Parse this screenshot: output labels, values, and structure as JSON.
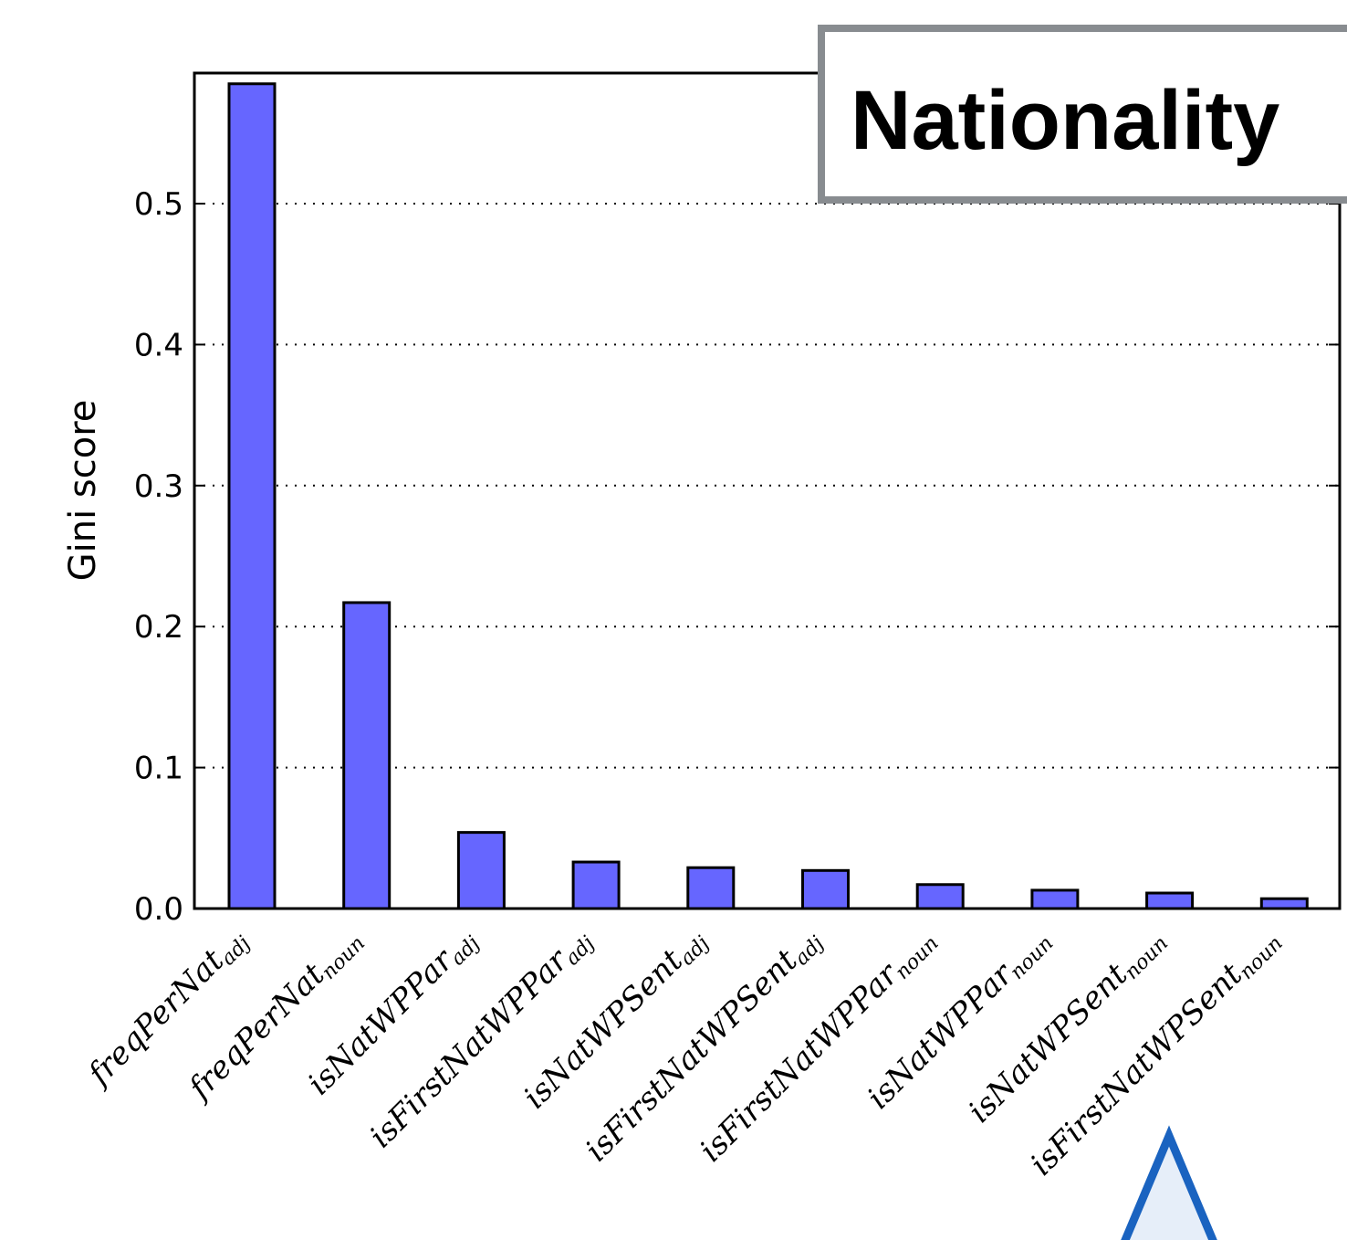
{
  "chart_data": {
    "type": "bar",
    "title": "Nationality",
    "xlabel": "",
    "ylabel": "Gini score",
    "ylim": [
      0,
      0.59
    ],
    "yticks": [
      "0.0",
      "0.1",
      "0.2",
      "0.3",
      "0.4",
      "0.5"
    ],
    "grid": "horizontal dotted",
    "categories": [
      {
        "main": "freqPerNat",
        "sub": "adj"
      },
      {
        "main": "freqPerNat",
        "sub": "noun"
      },
      {
        "main": "isNatWPPar",
        "sub": "adj"
      },
      {
        "main": "isFirstNatWPPar",
        "sub": "adj"
      },
      {
        "main": "isNatWPSent",
        "sub": "adj"
      },
      {
        "main": "isFirstNatWPSent",
        "sub": "adj"
      },
      {
        "main": "isFirstNatWPPar",
        "sub": "noun"
      },
      {
        "main": "isNatWPPar",
        "sub": "noun"
      },
      {
        "main": "isNatWPSent",
        "sub": "noun"
      },
      {
        "main": "isFirstNatWPSent",
        "sub": "noun"
      }
    ],
    "values": [
      0.585,
      0.217,
      0.054,
      0.033,
      0.029,
      0.027,
      0.017,
      0.013,
      0.011,
      0.007
    ],
    "bar_color": "#6666ff",
    "title_box_border": "#888c90",
    "annotation_arrow_stroke": "#1a63c0",
    "annotation_arrow_fill": "#e6eef9"
  }
}
